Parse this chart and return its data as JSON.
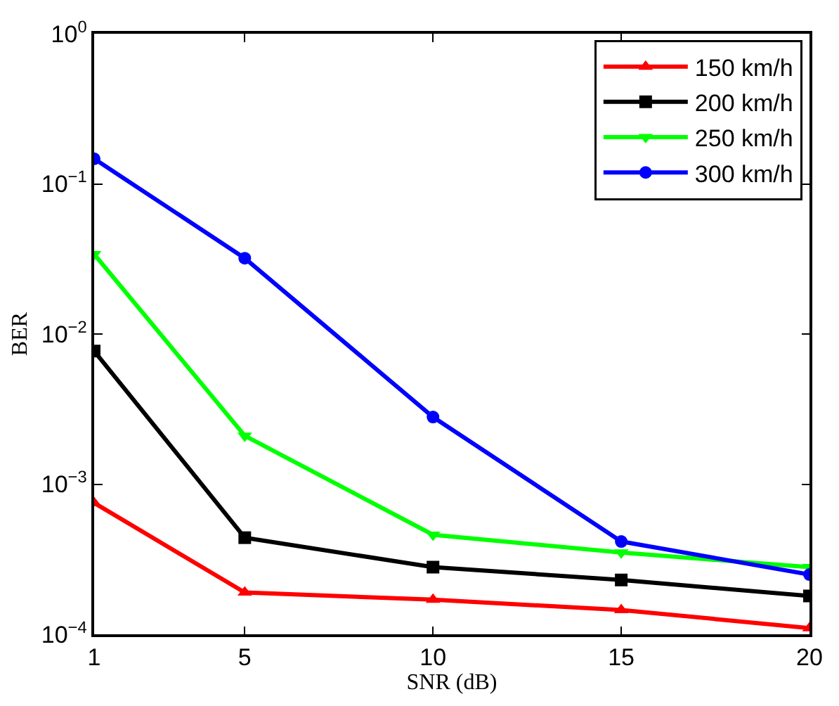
{
  "chart_data": {
    "type": "line",
    "xlabel": "SNR (dB)",
    "ylabel": "BER",
    "x": [
      1,
      5,
      10,
      15,
      20
    ],
    "log": "y",
    "grid": false,
    "legend": "top right",
    "xlim": [
      1,
      20
    ],
    "xticks": [
      1,
      5,
      10,
      15,
      20
    ],
    "ylim": [
      0.0001,
      1
    ],
    "yticks": [
      {
        "value": 0.0001,
        "label": "10$^{−4}$"
      },
      {
        "value": 0.001,
        "label": "10$^{−3}$"
      },
      {
        "value": 0.01,
        "label": "10$^{−2}$"
      },
      {
        "value": 0.1,
        "label": "10$^{−1}$"
      },
      {
        "value": 1,
        "label": "10$^{0}$"
      }
    ],
    "line_style": "solid",
    "series": [
      {
        "name": "150 km/h",
        "color": "#ff0000",
        "marker": "triangle",
        "values": [
          0.00075,
          0.00019,
          0.00017,
          0.000145,
          0.00011
        ]
      },
      {
        "name": "200 km/h",
        "color": "#000000",
        "marker": "square",
        "values": [
          0.0077,
          0.00044,
          0.00028,
          0.00023,
          0.00018
        ]
      },
      {
        "name": "250 km/h",
        "color": "#00ff00",
        "marker": "triangle-down",
        "values": [
          0.034,
          0.0021,
          0.00046,
          0.00035,
          0.00028
        ]
      },
      {
        "name": "300 km/h",
        "color": "#0000ff",
        "marker": "circle",
        "values": [
          0.147,
          0.032,
          0.0028,
          0.000415,
          0.00025
        ]
      }
    ]
  }
}
